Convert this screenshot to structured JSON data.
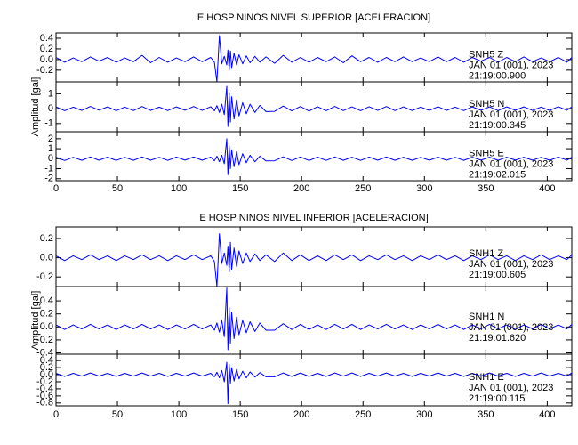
{
  "chart_data": [
    {
      "type": "line",
      "title": "E HOSP NINOS NIVEL SUPERIOR [ACELERACION]",
      "ylabel": "Amplitud [gal]",
      "xlim": [
        0,
        420
      ],
      "xticks": [
        0,
        50,
        100,
        150,
        200,
        250,
        300,
        350,
        400
      ],
      "x": [
        0,
        7,
        14,
        21,
        28,
        35,
        42,
        49,
        56,
        63,
        70,
        77,
        84,
        91,
        98,
        105,
        112,
        119,
        126,
        129,
        131,
        133,
        135,
        137,
        139,
        140,
        141,
        142,
        143,
        145,
        147,
        149,
        152,
        155,
        158,
        162,
        166,
        171,
        178,
        185,
        192,
        199,
        206,
        213,
        220,
        227,
        234,
        241,
        248,
        255,
        262,
        269,
        276,
        283,
        290,
        297,
        304,
        311,
        318,
        325,
        332,
        339,
        346,
        353,
        360,
        367,
        374,
        381,
        388,
        395,
        402,
        409,
        416,
        420
      ],
      "panels": [
        {
          "station": "SNH5   Z",
          "date": "JAN 01 (001), 2023",
          "time": "21:19:00.900",
          "color": "#0000ff",
          "ylim": [
            -0.42,
            0.5
          ],
          "yticks": [
            0.4,
            0.2,
            {
              "value": 0,
              "label": "0.0"
            },
            -0.2
          ],
          "values": [
            0.04,
            -0.05,
            0.03,
            -0.04,
            0.05,
            -0.03,
            0.04,
            -0.05,
            0.03,
            -0.04,
            0.08,
            -0.06,
            0.04,
            -0.05,
            0.03,
            -0.04,
            0.05,
            -0.04,
            0.04,
            -0.05,
            -0.42,
            0.45,
            -0.08,
            0.06,
            -0.1,
            0.18,
            -0.2,
            0.16,
            -0.15,
            0.12,
            -0.1,
            0.09,
            -0.08,
            0.07,
            -0.06,
            0.06,
            -0.05,
            0.05,
            -0.07,
            0.08,
            -0.05,
            0.04,
            -0.05,
            0.04,
            -0.04,
            0.05,
            -0.06,
            0.07,
            -0.04,
            0.04,
            -0.05,
            0.04,
            -0.04,
            0.05,
            -0.04,
            0.03,
            -0.04,
            0.05,
            -0.04,
            0.04,
            -0.05,
            0.04,
            -0.03,
            0.04,
            -0.05,
            0.04,
            -0.04,
            0.05,
            -0.04,
            0.03,
            -0.04,
            0.04,
            -0.05,
            0.04
          ]
        },
        {
          "station": "SNH5   N",
          "date": "JAN 01 (001), 2023",
          "time": "21:19:00.345",
          "color": "#0000ff",
          "ylim": [
            -1.55,
            1.8
          ],
          "yticks": [
            1,
            0,
            -1
          ],
          "values": [
            0.12,
            -0.14,
            0.1,
            -0.12,
            0.15,
            -0.1,
            0.12,
            -0.14,
            0.11,
            -0.13,
            0.14,
            -0.12,
            0.1,
            -0.13,
            0.12,
            -0.11,
            0.14,
            -0.12,
            0.13,
            -0.15,
            0.2,
            -0.25,
            0.3,
            -0.4,
            1.5,
            -1.2,
            1.1,
            -0.9,
            0.8,
            -0.7,
            0.6,
            -0.5,
            0.4,
            -0.35,
            0.3,
            -0.25,
            0.22,
            -0.2,
            -0.18,
            0.17,
            -0.15,
            0.14,
            -0.16,
            0.13,
            -0.14,
            0.15,
            -0.13,
            0.12,
            -0.14,
            0.13,
            -0.12,
            0.14,
            -0.13,
            0.12,
            -0.13,
            0.11,
            -0.12,
            0.13,
            -0.12,
            0.11,
            -0.13,
            0.12,
            -0.11,
            0.12,
            -0.13,
            0.12,
            -0.11,
            0.12,
            -0.12,
            0.11,
            -0.12,
            0.13,
            -0.11,
            0.12
          ]
        },
        {
          "station": "SNH5   E",
          "date": "JAN 01 (001), 2023",
          "time": "21:19:02.015",
          "color": "#0000ff",
          "ylim": [
            -2.2,
            2.7
          ],
          "yticks": [
            2,
            1,
            0,
            -1,
            -2
          ],
          "values": [
            0.15,
            -0.18,
            0.14,
            -0.16,
            0.18,
            -0.15,
            0.16,
            -0.17,
            0.14,
            -0.16,
            0.18,
            -0.15,
            0.14,
            -0.17,
            0.16,
            -0.14,
            0.17,
            -0.15,
            0.16,
            -0.2,
            0.25,
            -0.3,
            0.35,
            -0.5,
            2.0,
            -1.6,
            1.3,
            -1.0,
            0.9,
            -0.8,
            0.7,
            -0.6,
            0.5,
            -0.4,
            0.35,
            -0.3,
            0.25,
            -0.22,
            -0.2,
            0.19,
            -0.18,
            0.17,
            -0.18,
            0.16,
            -0.17,
            0.18,
            -0.16,
            0.15,
            -0.17,
            0.16,
            -0.15,
            0.17,
            -0.16,
            0.15,
            -0.16,
            0.14,
            -0.15,
            0.16,
            -0.15,
            0.14,
            -0.16,
            0.15,
            -0.14,
            0.15,
            -0.16,
            0.15,
            -0.14,
            0.15,
            -0.15,
            0.14,
            -0.15,
            0.16,
            -0.14,
            0.15
          ]
        }
      ]
    },
    {
      "type": "line",
      "title": "E HOSP NINOS NIVEL INFERIOR [ACELERACION]",
      "ylabel": "Amplitud [gal]",
      "xlim": [
        0,
        420
      ],
      "xticks": [
        0,
        50,
        100,
        150,
        200,
        250,
        300,
        350,
        400
      ],
      "x": [
        0,
        7,
        14,
        21,
        28,
        35,
        42,
        49,
        56,
        63,
        70,
        77,
        84,
        91,
        98,
        105,
        112,
        119,
        126,
        129,
        131,
        133,
        135,
        137,
        139,
        140,
        141,
        142,
        143,
        145,
        147,
        149,
        152,
        155,
        158,
        162,
        166,
        171,
        178,
        185,
        192,
        199,
        206,
        213,
        220,
        227,
        234,
        241,
        248,
        255,
        262,
        269,
        276,
        283,
        290,
        297,
        304,
        311,
        318,
        325,
        332,
        339,
        346,
        353,
        360,
        367,
        374,
        381,
        388,
        395,
        402,
        409,
        416,
        420
      ],
      "panels": [
        {
          "station": "SNH1   Z",
          "date": "JAN 01 (001), 2023",
          "time": "21:19:00.605",
          "color": "#0000ff",
          "ylim": [
            -0.3,
            0.32
          ],
          "yticks": [
            0.2,
            {
              "value": 0,
              "label": "0.0"
            },
            -0.2
          ],
          "values": [
            0.02,
            -0.03,
            0.02,
            -0.02,
            0.03,
            -0.02,
            0.02,
            -0.03,
            0.02,
            -0.02,
            0.03,
            -0.02,
            0.02,
            -0.03,
            0.02,
            -0.02,
            0.03,
            -0.02,
            0.02,
            -0.04,
            -0.3,
            0.25,
            -0.06,
            0.05,
            -0.08,
            0.12,
            -0.15,
            0.16,
            -0.12,
            0.1,
            -0.09,
            0.07,
            -0.06,
            0.05,
            -0.04,
            0.04,
            -0.03,
            0.03,
            -0.04,
            0.05,
            -0.03,
            0.03,
            -0.03,
            0.02,
            -0.03,
            0.03,
            -0.02,
            0.03,
            -0.03,
            0.02,
            -0.02,
            0.03,
            -0.02,
            0.02,
            -0.03,
            0.02,
            -0.02,
            0.03,
            -0.02,
            0.02,
            -0.03,
            0.02,
            -0.02,
            0.03,
            -0.02,
            0.02,
            -0.03,
            0.02,
            -0.02,
            0.03,
            -0.02,
            0.02,
            -0.02,
            0.03
          ]
        },
        {
          "station": "SNH1   N",
          "date": "JAN 01 (001), 2023",
          "time": "21:19:01.620",
          "color": "#0000ff",
          "ylim": [
            -0.42,
            0.62
          ],
          "yticks": [
            0.4,
            0.2,
            {
              "value": 0,
              "label": "0.0"
            },
            -0.2,
            -0.4
          ],
          "values": [
            0.03,
            -0.04,
            0.03,
            -0.03,
            0.04,
            -0.03,
            0.03,
            -0.04,
            0.03,
            -0.03,
            0.04,
            -0.03,
            0.03,
            -0.04,
            0.03,
            -0.03,
            0.04,
            -0.03,
            0.03,
            -0.05,
            0.06,
            -0.08,
            0.1,
            -0.15,
            0.6,
            -0.35,
            0.3,
            -0.25,
            0.22,
            -0.18,
            0.15,
            -0.12,
            0.1,
            -0.09,
            0.08,
            -0.07,
            0.06,
            -0.05,
            -0.05,
            0.05,
            -0.04,
            0.04,
            -0.04,
            0.03,
            -0.04,
            0.04,
            -0.03,
            0.04,
            -0.04,
            0.03,
            -0.03,
            0.04,
            -0.03,
            0.03,
            -0.04,
            0.03,
            -0.03,
            0.04,
            -0.03,
            0.03,
            -0.04,
            0.03,
            -0.03,
            0.04,
            -0.03,
            0.03,
            -0.04,
            0.03,
            -0.03,
            0.04,
            -0.03,
            0.03,
            -0.03,
            0.04
          ]
        },
        {
          "station": "SNH1   E",
          "date": "JAN 01 (001), 2023",
          "time": "21:19:00.115",
          "color": "#0000ff",
          "ylim": [
            -0.88,
            0.58
          ],
          "yticks": [
            0.4,
            0.2,
            {
              "value": 0,
              "label": "0.0"
            },
            -0.2,
            -0.4,
            -0.6,
            -0.8
          ],
          "values": [
            0.04,
            -0.05,
            0.04,
            -0.04,
            0.05,
            -0.04,
            0.04,
            -0.05,
            0.04,
            -0.04,
            0.05,
            -0.04,
            0.04,
            -0.05,
            0.04,
            -0.04,
            0.05,
            -0.04,
            0.04,
            -0.06,
            0.07,
            -0.09,
            0.12,
            -0.2,
            0.35,
            -0.82,
            0.3,
            -0.25,
            0.2,
            -0.18,
            0.15,
            -0.12,
            0.1,
            -0.09,
            0.08,
            -0.07,
            0.06,
            -0.06,
            -0.06,
            0.05,
            -0.05,
            0.05,
            -0.05,
            0.04,
            -0.05,
            0.05,
            -0.04,
            0.05,
            -0.05,
            0.04,
            -0.04,
            0.05,
            -0.04,
            0.04,
            -0.05,
            0.04,
            -0.04,
            0.05,
            -0.04,
            0.04,
            -0.05,
            0.04,
            -0.04,
            0.05,
            -0.04,
            0.04,
            -0.05,
            0.04,
            -0.04,
            0.05,
            -0.04,
            0.04,
            -0.04,
            0.05
          ]
        }
      ]
    }
  ]
}
